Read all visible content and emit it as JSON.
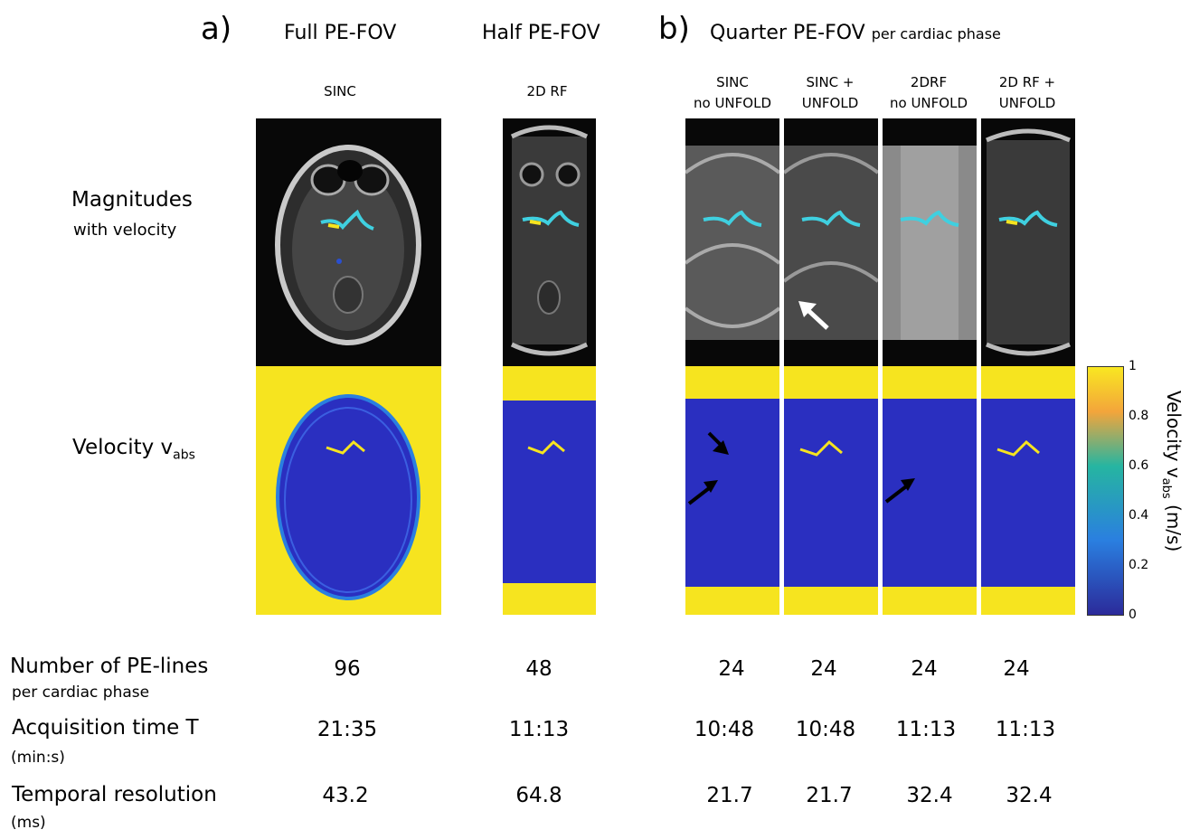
{
  "panel_labels": {
    "a": "a)",
    "b": "b)"
  },
  "group_titles": {
    "full": "Full PE-FOV",
    "half": "Half PE-FOV",
    "quarter": "Quarter PE-FOV",
    "quarter_suffix": "per cardiac phase"
  },
  "columns": [
    {
      "line1": "SINC",
      "line2": ""
    },
    {
      "line1": "2D RF",
      "line2": ""
    },
    {
      "line1": "SINC",
      "line2": "no UNFOLD"
    },
    {
      "line1": "SINC +",
      "line2": "UNFOLD"
    },
    {
      "line1": "2DRF",
      "line2": "no UNFOLD"
    },
    {
      "line1": "2D RF +",
      "line2": "UNFOLD"
    }
  ],
  "row_labels": {
    "magnitude_main": "Magnitudes",
    "magnitude_sub": "with velocity",
    "velocity_main": "Velocity v",
    "velocity_subscript": "abs"
  },
  "colorbar": {
    "title": "Velocity v",
    "title_subscript": "abs",
    "title_unit": "(m/s)",
    "ticks": [
      "1",
      "0.8",
      "0.6",
      "0.4",
      "0.2",
      "0"
    ],
    "colors": {
      "top": "#f9e721",
      "upper": "#f3a53b",
      "mid": "#26b5a1",
      "lower": "#2a7fe0",
      "bottom": "#2b2a9a"
    }
  },
  "table": {
    "rows": [
      {
        "label": "Number of PE-lines",
        "sub": "per cardiac phase",
        "values": [
          "96",
          "48",
          "24",
          "24",
          "24",
          "24"
        ]
      },
      {
        "label": "Acquisition time T",
        "sub": "(min:s)",
        "values": [
          "21:35",
          "11:13",
          "10:48",
          "10:48",
          "11:13",
          "11:13"
        ]
      },
      {
        "label": "Temporal resolution",
        "sub": "(ms)",
        "values": [
          "43.2",
          "64.8",
          "21.7",
          "21.7",
          "32.4",
          "32.4"
        ]
      }
    ]
  },
  "colors": {
    "noise_yellow": "#f6e41f",
    "tissue_blue": "#2a2fc0",
    "arrow_white": "#ffffff",
    "arrow_black": "#000000"
  }
}
